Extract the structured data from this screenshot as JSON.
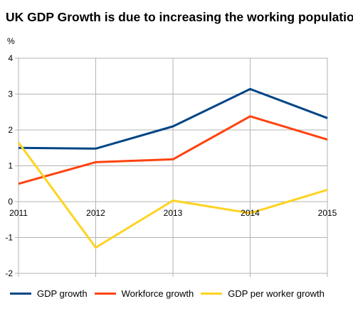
{
  "chart_data": {
    "type": "line",
    "title": "UK GDP Growth is due to increasing the working population",
    "ylabel": "%",
    "xlabel": "",
    "x": [
      "2011",
      "2012",
      "2013",
      "2014",
      "2015"
    ],
    "ylim": [
      -2,
      4
    ],
    "yticks": [
      "4",
      "3",
      "2",
      "1",
      "0",
      "-1",
      "-2"
    ],
    "grid": true,
    "legend_position": "bottom",
    "series": [
      {
        "name": "GDP growth",
        "color": "#004586",
        "values": [
          1.5,
          1.48,
          2.1,
          3.14,
          2.33
        ]
      },
      {
        "name": "Workforce growth",
        "color": "#ff420e",
        "values": [
          0.5,
          1.1,
          1.18,
          2.38,
          1.73
        ]
      },
      {
        "name": "GDP per worker growth",
        "color": "#ffd320",
        "values": [
          1.65,
          -1.28,
          0.03,
          -0.32,
          0.33
        ]
      }
    ]
  }
}
